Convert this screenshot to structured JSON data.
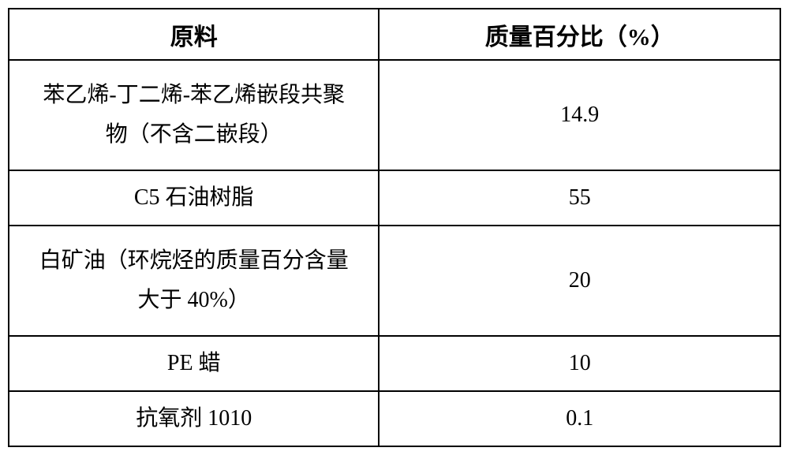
{
  "table": {
    "columns": [
      {
        "label": "原料"
      },
      {
        "label": "质量百分比（%）"
      }
    ],
    "rows": [
      {
        "material_line1": "苯乙烯-丁二烯-苯乙烯嵌段共聚",
        "material_line2": "物（不含二嵌段）",
        "multiline": true,
        "percent": "14.9",
        "row_class": "row-tall"
      },
      {
        "material": "C5 石油树脂",
        "multiline": false,
        "percent": "55",
        "row_class": "row-short"
      },
      {
        "material_line1": "白矿油（环烷烃的质量百分含量",
        "material_line2": "大于 40%）",
        "multiline": true,
        "percent": "20",
        "row_class": "row-tall"
      },
      {
        "material": "PE 蜡",
        "multiline": false,
        "percent": "10",
        "row_class": "row-short"
      },
      {
        "material": "抗氧剂 1010",
        "multiline": false,
        "percent": "0.1",
        "row_class": "row-short"
      }
    ],
    "styling": {
      "border_color": "#000000",
      "border_width": 2,
      "background_color": "#ffffff",
      "text_color": "#000000",
      "header_fontsize": 30,
      "cell_fontsize": 28,
      "font_family": "SimSun",
      "header_bold": true
    }
  }
}
